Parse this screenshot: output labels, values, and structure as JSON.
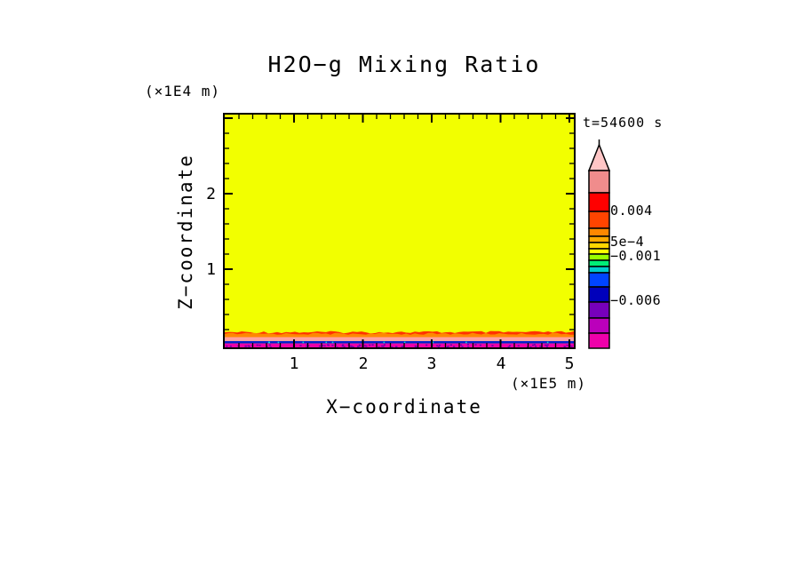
{
  "title": "H2O−g Mixing Ratio",
  "time_label": "t=54600 s",
  "x_axis": {
    "label": "X−coordinate",
    "unit": "(×1E5 m)",
    "tick_labels": [
      "1",
      "2",
      "3",
      "4",
      "5"
    ]
  },
  "z_axis": {
    "label": "Z−coordinate",
    "unit": "(×1E4 m)",
    "tick_labels": [
      "2",
      "1"
    ]
  },
  "colorbar": {
    "arrow_color": "#FFC6C6",
    "labels": [
      {
        "text": "0.004",
        "y": 237
      },
      {
        "text": "5e−4",
        "y": 272
      },
      {
        "text": "−0.001",
        "y": 288
      },
      {
        "text": "−0.006",
        "y": 338
      }
    ],
    "segments": [
      {
        "color": "#F08C8C",
        "from": 192,
        "to": 217
      },
      {
        "color": "#FF0000",
        "from": 217,
        "to": 238
      },
      {
        "color": "#FF4400",
        "from": 238,
        "to": 257
      },
      {
        "color": "#FF8800",
        "from": 257,
        "to": 266
      },
      {
        "color": "#FFAA00",
        "from": 266,
        "to": 273
      },
      {
        "color": "#FFD700",
        "from": 273,
        "to": 280
      },
      {
        "color": "#FFFF00",
        "from": 280,
        "to": 286
      },
      {
        "color": "#99FF00",
        "from": 286,
        "to": 293
      },
      {
        "color": "#00EE77",
        "from": 293,
        "to": 300
      },
      {
        "color": "#00CCCC",
        "from": 300,
        "to": 307
      },
      {
        "color": "#0044FF",
        "from": 307,
        "to": 323
      },
      {
        "color": "#0000BB",
        "from": 323,
        "to": 340
      },
      {
        "color": "#7700BB",
        "from": 340,
        "to": 358
      },
      {
        "color": "#BB00BB",
        "from": 358,
        "to": 375
      },
      {
        "color": "#EE00AA",
        "from": 375,
        "to": 392
      }
    ]
  },
  "field_colors": {
    "body": "#F2FF00",
    "jag_red": "#FF3300",
    "jag_orange": "#FF8800",
    "salmon": "#FFA0A0",
    "blue_line": "#0022CC",
    "bottom_magenta": "#EE00AA",
    "speckle_purple": "#7700AA",
    "speckle_cyan": "#00DDDD"
  },
  "chart_data": {
    "type": "heatmap",
    "title": "H2O−g Mixing Ratio",
    "xlabel": "X−coordinate",
    "x_unit": "(×1E5 m)",
    "ylabel": "Z−coordinate",
    "y_unit": "(×1E4 m)",
    "time_annotation": "t=54600 s",
    "x_range": [
      0,
      5.1
    ],
    "z_range": [
      0,
      3.1
    ],
    "x_tick_values": [
      1,
      2,
      3,
      4,
      5
    ],
    "z_tick_values": [
      1,
      2
    ],
    "grid": false,
    "legend_position": "right-colorbar",
    "colorbar_tick_values": [
      0.004,
      0.0005,
      -0.001,
      -0.006
    ],
    "field_layers": [
      {
        "z_from": 0.25,
        "z_to": 3.1,
        "value_band": "≈0 to 5e−4",
        "color": "#F2FF00",
        "note": "uniform yellow body over full x range"
      },
      {
        "z_from": 0.2,
        "z_to": 0.25,
        "value_band": "≈0.004",
        "color": "#FF8800",
        "note": "thin orange layer with jagged red upper interface"
      },
      {
        "z_from": 0.1,
        "z_to": 0.2,
        "value_band": "high positive (salmon band)",
        "color": "#FFA0A0",
        "note": "continuous salmon layer"
      },
      {
        "z_from": 0.07,
        "z_to": 0.1,
        "value_band": "≈−0.001",
        "color": "#0022CC",
        "note": "thin dark blue line"
      },
      {
        "z_from": 0.0,
        "z_to": 0.07,
        "value_band": "≤−0.006",
        "color": "#EE00AA",
        "note": "magenta surface layer mottled with purple"
      }
    ]
  }
}
